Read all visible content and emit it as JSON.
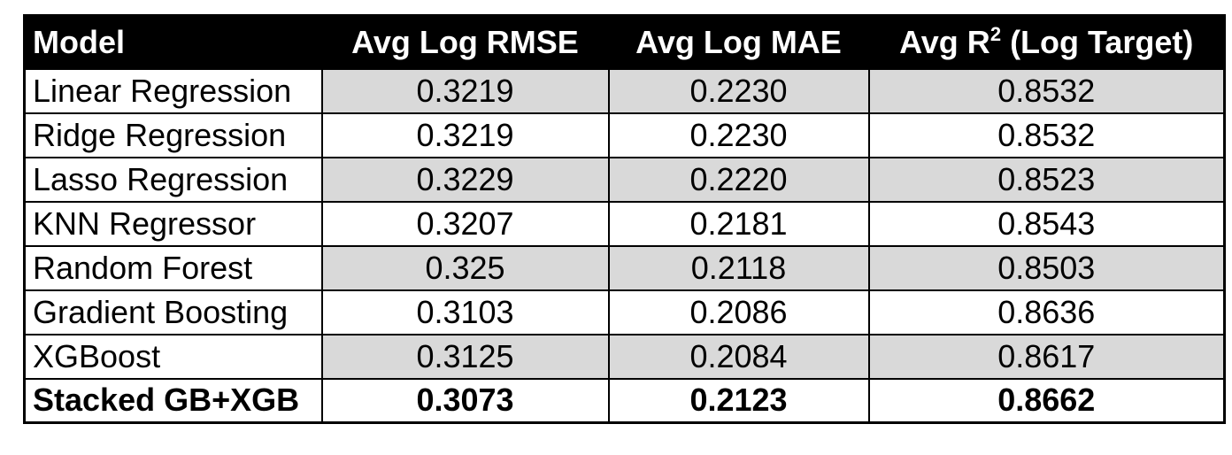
{
  "table": {
    "headers": {
      "model": "Model",
      "rmse": "Avg Log RMSE",
      "mae": "Avg Log MAE",
      "r2_prefix": "Avg R",
      "r2_sup": "2",
      "r2_suffix": " (Log Target)"
    },
    "rows": [
      {
        "model": "Linear Regression",
        "rmse": "0.3219",
        "mae": "0.2230",
        "r2": "0.8532"
      },
      {
        "model": "Ridge Regression",
        "rmse": "0.3219",
        "mae": "0.2230",
        "r2": "0.8532"
      },
      {
        "model": "Lasso Regression",
        "rmse": "0.3229",
        "mae": "0.2220",
        "r2": "0.8523"
      },
      {
        "model": "KNN Regressor",
        "rmse": "0.3207",
        "mae": "0.2181",
        "r2": "0.8543"
      },
      {
        "model": "Random Forest",
        "rmse": "0.325",
        "mae": "0.2118",
        "r2": "0.8503"
      },
      {
        "model": "Gradient Boosting",
        "rmse": "0.3103",
        "mae": "0.2086",
        "r2": "0.8636"
      },
      {
        "model": "XGBoost",
        "rmse": "0.3125",
        "mae": "0.2084",
        "r2": "0.8617"
      },
      {
        "model": "Stacked GB+XGB",
        "rmse": "0.3073",
        "mae": "0.2123",
        "r2": "0.8662"
      }
    ]
  },
  "colors": {
    "header_bg": "#000000",
    "header_text": "#ffffff",
    "shaded_cell": "#d9d9d9",
    "border": "#000000"
  }
}
